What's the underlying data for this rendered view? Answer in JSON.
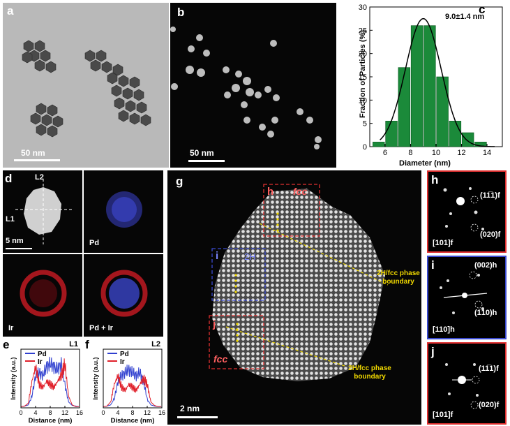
{
  "panels": {
    "a": {
      "label": "a",
      "scale": "50 nm"
    },
    "b": {
      "label": "b",
      "scale": "50 nm"
    },
    "c": {
      "label": "c",
      "annotation": "9.0±1.4 nm"
    },
    "d": {
      "label": "d",
      "line1": "L1",
      "line2": "L2",
      "scale": "5 nm",
      "pd": "Pd",
      "ir": "Ir",
      "pdir": "Pd + Ir"
    },
    "e": {
      "label": "e",
      "line": "L1"
    },
    "f": {
      "label": "f",
      "line": "L2"
    },
    "g": {
      "label": "g",
      "scale": "2 nm",
      "box_h": "h",
      "box_i": "i",
      "box_j": "j",
      "fcc_top": "fcc",
      "twoH": "2H",
      "fcc_bottom": "fcc",
      "boundary_top": "2H/fcc phase boundary",
      "boundary_bottom": "2H/fcc phase boundary"
    },
    "h": {
      "label": "h",
      "spot1": "(11̅1)f",
      "spot2": "(020)f",
      "zone": "[101]f"
    },
    "i": {
      "label": "i",
      "spot1": "(002)h",
      "spot2": "(1̅10)h",
      "zone": "[110]h"
    },
    "j": {
      "label": "j",
      "spot1": "(11̅1)f",
      "spot2": "(020)f",
      "zone": "[101]f"
    }
  },
  "colors": {
    "bar": "#1b8a3a",
    "pd": "#2f3fcf",
    "ir": "#e0202a",
    "h_box": "#e03030",
    "i_box": "#3a4ad0",
    "boundary": "#f0d800"
  },
  "chart_data": [
    {
      "type": "bar",
      "panel": "c",
      "categories": [
        5.5,
        6.5,
        7.5,
        8.5,
        9.5,
        10.5,
        11.5,
        12.5,
        13.5
      ],
      "values": [
        1,
        5.5,
        17,
        26,
        26,
        15,
        5.5,
        3,
        1
      ],
      "fit": "gaussian",
      "fit_mean": 9.0,
      "fit_sigma": 1.4,
      "xlabel": "Diameter (nm)",
      "ylabel": "Fraction of Particles (%)",
      "xlim": [
        4.8,
        15.2
      ],
      "ylim": [
        0,
        30
      ],
      "xticks": [
        6,
        8,
        10,
        12,
        14
      ],
      "yticks": [
        0,
        5,
        10,
        15,
        20,
        25,
        30
      ]
    },
    {
      "type": "line",
      "panel": "e",
      "legend": [
        "Pd",
        "Ir"
      ],
      "series": [
        {
          "name": "Pd",
          "x": [
            0,
            1,
            2,
            3,
            4,
            5,
            6,
            7,
            8,
            9,
            10,
            11,
            12,
            13,
            14,
            15,
            16
          ],
          "y": [
            0.02,
            0.03,
            0.05,
            0.2,
            0.55,
            0.6,
            0.55,
            0.7,
            0.75,
            0.7,
            0.65,
            0.75,
            0.4,
            0.1,
            0.04,
            0.03,
            0.02
          ]
        },
        {
          "name": "Ir",
          "x": [
            0,
            1,
            2,
            3,
            4,
            5,
            6,
            7,
            8,
            9,
            10,
            11,
            12,
            13,
            14,
            15,
            16
          ],
          "y": [
            0.02,
            0.03,
            0.08,
            0.45,
            0.7,
            0.4,
            0.35,
            0.45,
            0.4,
            0.35,
            0.45,
            0.55,
            0.75,
            0.2,
            0.05,
            0.02,
            0.02
          ]
        }
      ],
      "xlabel": "Distance (nm)",
      "ylabel": "Intensity (a.u.)",
      "xlim": [
        0,
        16
      ],
      "xticks": [
        0,
        4,
        8,
        12,
        16
      ]
    },
    {
      "type": "line",
      "panel": "f",
      "legend": [
        "Pd",
        "Ir"
      ],
      "series": [
        {
          "name": "Pd",
          "x": [
            0,
            1,
            2,
            3,
            4,
            5,
            6,
            7,
            8,
            9,
            10,
            11,
            12,
            13,
            14,
            15,
            16
          ],
          "y": [
            0.02,
            0.03,
            0.05,
            0.15,
            0.45,
            0.55,
            0.6,
            0.65,
            0.6,
            0.55,
            0.6,
            0.45,
            0.15,
            0.05,
            0.03,
            0.02,
            0.02
          ]
        },
        {
          "name": "Ir",
          "x": [
            0,
            1,
            2,
            3,
            4,
            5,
            6,
            7,
            8,
            9,
            10,
            11,
            12,
            13,
            14,
            15,
            16
          ],
          "y": [
            0.02,
            0.03,
            0.1,
            0.4,
            0.55,
            0.35,
            0.3,
            0.4,
            0.35,
            0.3,
            0.4,
            0.5,
            0.4,
            0.1,
            0.04,
            0.02,
            0.02
          ]
        }
      ],
      "xlabel": "Distance (nm)",
      "ylabel": "Intensity (a.u.)",
      "xlim": [
        0,
        16
      ],
      "xticks": [
        0,
        4,
        8,
        12,
        16
      ]
    }
  ]
}
